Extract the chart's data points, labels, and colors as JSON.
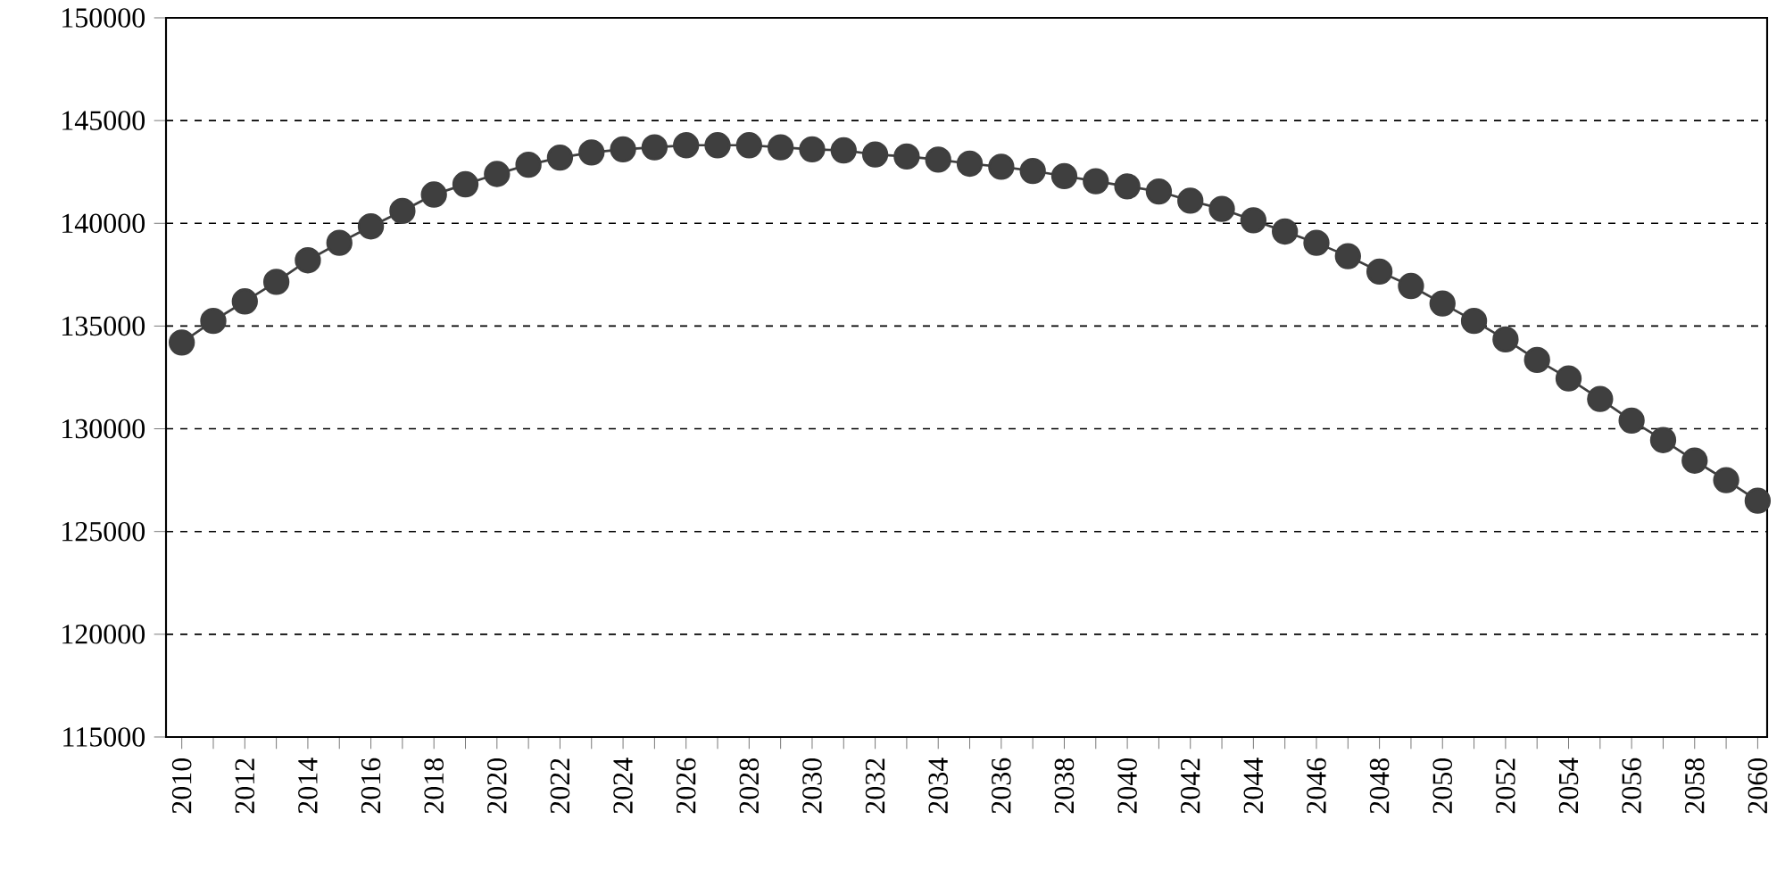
{
  "chart_data": {
    "type": "line",
    "x": [
      2010,
      2011,
      2012,
      2013,
      2014,
      2015,
      2016,
      2017,
      2018,
      2019,
      2020,
      2021,
      2022,
      2023,
      2024,
      2025,
      2026,
      2027,
      2028,
      2029,
      2030,
      2031,
      2032,
      2033,
      2034,
      2035,
      2036,
      2037,
      2038,
      2039,
      2040,
      2041,
      2042,
      2043,
      2044,
      2045,
      2046,
      2047,
      2048,
      2049,
      2050,
      2051,
      2052,
      2053,
      2054,
      2055,
      2056,
      2057,
      2058,
      2059,
      2060
    ],
    "values": [
      134200,
      135250,
      136200,
      137150,
      138200,
      139050,
      139850,
      140600,
      141400,
      141900,
      142400,
      142850,
      143200,
      143450,
      143600,
      143700,
      143800,
      143800,
      143800,
      143700,
      143600,
      143550,
      143350,
      143250,
      143100,
      142900,
      142750,
      142550,
      142300,
      142050,
      141800,
      141550,
      141100,
      140700,
      140150,
      139600,
      139050,
      138400,
      137650,
      136950,
      136100,
      135250,
      134350,
      133350,
      132450,
      131450,
      130400,
      129450,
      128450,
      127500,
      126500
    ],
    "color": "#3f3f3f",
    "marker": "circle",
    "line_style": "solid",
    "grid": "y",
    "xlim": [
      2009.5,
      2060.3
    ],
    "ylim": [
      115000,
      150000
    ],
    "yticks": [
      115000,
      120000,
      125000,
      130000,
      135000,
      140000,
      145000,
      150000
    ],
    "xticks": [
      2010,
      {
        "value": 2011,
        "label": null
      },
      2012,
      {
        "value": 2013,
        "label": null
      },
      2014,
      {
        "value": 2015,
        "label": null
      },
      2016,
      {
        "value": 2017,
        "label": null
      },
      2018,
      {
        "value": 2019,
        "label": null
      },
      2020,
      {
        "value": 2021,
        "label": null
      },
      2022,
      {
        "value": 2023,
        "label": null
      },
      2024,
      {
        "value": 2025,
        "label": null
      },
      2026,
      {
        "value": 2027,
        "label": null
      },
      2028,
      {
        "value": 2029,
        "label": null
      },
      2030,
      {
        "value": 2031,
        "label": null
      },
      2032,
      {
        "value": 2033,
        "label": null
      },
      2034,
      {
        "value": 2035,
        "label": null
      },
      2036,
      {
        "value": 2037,
        "label": null
      },
      2038,
      {
        "value": 2039,
        "label": null
      },
      2040,
      {
        "value": 2041,
        "label": null
      },
      2042,
      {
        "value": 2043,
        "label": null
      },
      2044,
      {
        "value": 2045,
        "label": null
      },
      2046,
      {
        "value": 2047,
        "label": null
      },
      2048,
      {
        "value": 2049,
        "label": null
      },
      2050,
      {
        "value": 2051,
        "label": null
      },
      2052,
      {
        "value": 2053,
        "label": null
      },
      2054,
      {
        "value": 2055,
        "label": null
      },
      2056,
      {
        "value": 2057,
        "label": null
      },
      2058,
      {
        "value": 2059,
        "label": null
      },
      2060
    ]
  }
}
